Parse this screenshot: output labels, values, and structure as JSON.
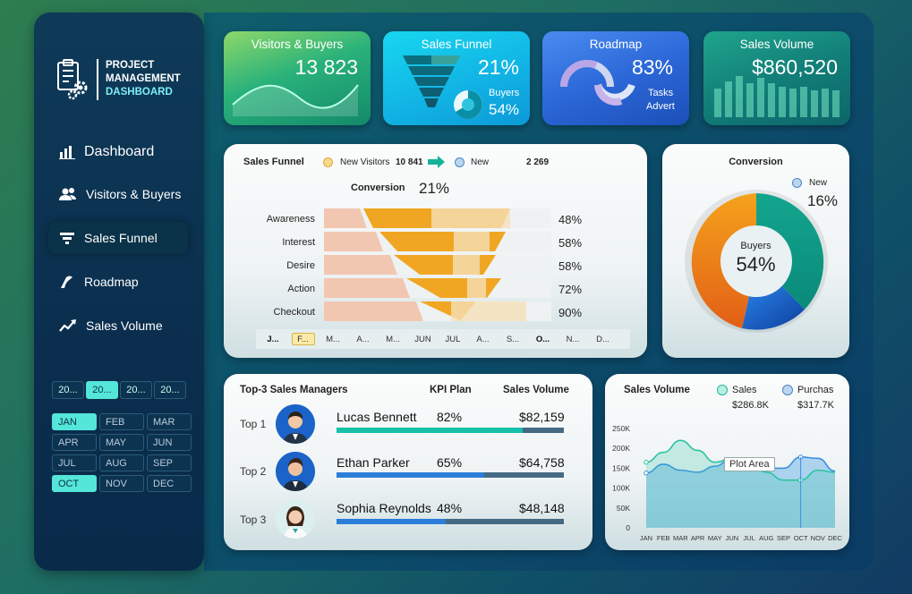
{
  "sidebar": {
    "logo": {
      "line1": "PROJECT",
      "line2": "MANAGEMENT",
      "line3": "DASHBOARD"
    },
    "nav": [
      {
        "label": "Dashboard",
        "icon": "bar-chart-icon"
      },
      {
        "label": "Visitors & Buyers",
        "icon": "users-icon"
      },
      {
        "label": "Sales Funnel",
        "icon": "funnel-icon"
      },
      {
        "label": "Roadmap",
        "icon": "road-icon"
      },
      {
        "label": "Sales Volume",
        "icon": "trend-up-icon"
      }
    ],
    "years": [
      "20...",
      "20...",
      "20...",
      "20..."
    ],
    "selected_year_index": 1,
    "months": [
      "JAN",
      "FEB",
      "MAR",
      "APR",
      "MAY",
      "JUN",
      "JUL",
      "AUG",
      "SEP",
      "OCT",
      "NOV",
      "DEC"
    ],
    "selected_months": [
      "JAN",
      "OCT"
    ]
  },
  "kpis": {
    "visitors": {
      "title": "Visitors & Buyers",
      "value": "13 823"
    },
    "funnel": {
      "title": "Sales Funnel",
      "value": "21%",
      "sub_label": "Buyers",
      "sub_value": "54%"
    },
    "roadmap": {
      "title": "Roadmap",
      "value": "83%",
      "sub1": "Tasks",
      "sub2": "Advert"
    },
    "volume": {
      "title": "Sales Volume",
      "value": "$860,520"
    }
  },
  "sales_funnel": {
    "title": "Sales Funnel",
    "legend_visitors": "New Visitors",
    "visitors_value": "10 841",
    "legend_new": "New",
    "new_value": "2 269",
    "conversion_label": "Conversion",
    "conversion_value": "21%",
    "stages": [
      {
        "name": "Awareness",
        "pct": "48%"
      },
      {
        "name": "Interest",
        "pct": "58%"
      },
      {
        "name": "Desire",
        "pct": "58%"
      },
      {
        "name": "Action",
        "pct": "72%"
      },
      {
        "name": "Checkout",
        "pct": "90%"
      }
    ],
    "months": [
      "J...",
      "F...",
      "M...",
      "A...",
      "M...",
      "JUN",
      "JUL",
      "A...",
      "S...",
      "O...",
      "N...",
      "D..."
    ]
  },
  "conversion": {
    "title": "Conversion",
    "legend_new": "New",
    "new_pct": "16%",
    "center_label": "Buyers",
    "center_value": "54%",
    "colors": {
      "teal": "#0f9b88",
      "blue": "#1f6fd0",
      "orange": "#ec7a1c"
    }
  },
  "managers": {
    "title": "Top-3 Sales Managers",
    "col_kpi": "KPI Plan",
    "col_volume": "Sales Volume",
    "rows": [
      {
        "rank": "Top 1",
        "name": "Lucas Bennett",
        "kpi": "82%",
        "volume": "$82,159",
        "progress": 0.82,
        "color": "#16c1a8"
      },
      {
        "rank": "Top 2",
        "name": "Ethan Parker",
        "kpi": "65%",
        "volume": "$64,758",
        "progress": 0.65,
        "color": "#2c7ed8"
      },
      {
        "rank": "Top 3",
        "name": "Sophia Reynolds",
        "kpi": "48%",
        "volume": "$48,148",
        "progress": 0.48,
        "color": "#2c7ed8"
      }
    ]
  },
  "sales_volume": {
    "title": "Sales Volume",
    "legend_sales": "Sales",
    "sales_total": "$286.8K",
    "legend_purchases": "Purchas",
    "purchases_total": "$317.7K",
    "tooltip": "Plot Area",
    "y_ticks": [
      "250K",
      "200K",
      "150K",
      "100K",
      "50K",
      "0"
    ]
  },
  "chart_data": {
    "type": "area",
    "x": [
      "JAN",
      "FEB",
      "MAR",
      "APR",
      "MAY",
      "JUN",
      "JUL",
      "AUG",
      "SEP",
      "OCT",
      "NOV",
      "DEC"
    ],
    "ylim": [
      0,
      250000
    ],
    "series": [
      {
        "name": "Sales",
        "values": [
          165000,
          190000,
          220000,
          195000,
          165000,
          175000,
          160000,
          140000,
          120000,
          120000,
          145000,
          140000
        ]
      },
      {
        "name": "Purchas",
        "values": [
          138000,
          160000,
          145000,
          140000,
          155000,
          175000,
          155000,
          150000,
          150000,
          178000,
          175000,
          143000
        ]
      }
    ]
  }
}
